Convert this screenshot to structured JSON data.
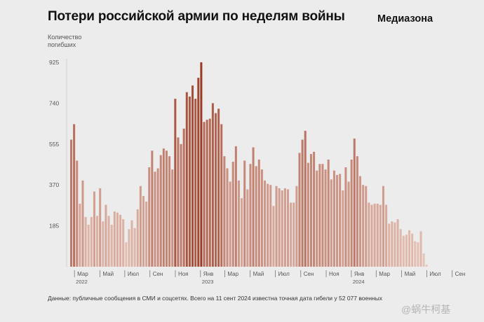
{
  "header": {
    "title": "Потери российской армии по неделям войны",
    "brand": "Медиазона"
  },
  "footnote": "Данные: публичные сообщения в СМИ и соцсетях. Всего на 11 сент 2024 известна точная дата гибели у 52 077 военных",
  "watermark": "@蜗牛柯基",
  "colors": {
    "low": "#e9c8bc",
    "high": "#9a3a24",
    "background": "#ececec",
    "axis_text": "#555555"
  },
  "chart_data": {
    "type": "bar",
    "title": "Потери российской армии по неделям войны",
    "ylabel": "Количество погибших",
    "xlabel": "",
    "ylim": [
      0,
      925
    ],
    "yticks": [
      185,
      370,
      555,
      740,
      925
    ],
    "grid": false,
    "x_unit": "week index (0 = first week of war, late Feb 2022)",
    "values": [
      575,
      645,
      480,
      285,
      390,
      225,
      190,
      225,
      340,
      230,
      355,
      205,
      280,
      230,
      190,
      250,
      245,
      235,
      215,
      110,
      170,
      210,
      175,
      260,
      365,
      320,
      295,
      450,
      525,
      430,
      445,
      505,
      535,
      525,
      500,
      440,
      760,
      585,
      555,
      625,
      790,
      770,
      820,
      760,
      855,
      925,
      655,
      665,
      670,
      740,
      695,
      715,
      645,
      500,
      445,
      385,
      475,
      545,
      390,
      310,
      480,
      350,
      465,
      540,
      455,
      485,
      440,
      390,
      375,
      370,
      275,
      365,
      355,
      345,
      355,
      350,
      290,
      290,
      365,
      515,
      575,
      615,
      470,
      510,
      520,
      435,
      465,
      465,
      440,
      485,
      395,
      435,
      415,
      420,
      345,
      450,
      385,
      485,
      580,
      500,
      410,
      370,
      365,
      290,
      280,
      285,
      285,
      280,
      365,
      280,
      195,
      205,
      200,
      215,
      170,
      140,
      145,
      165,
      150,
      115,
      110,
      160,
      60,
      10
    ],
    "x_ticks": [
      {
        "label": "Мар",
        "week": 1.5
      },
      {
        "label": "Май",
        "week": 10.3
      },
      {
        "label": "Июл",
        "week": 18.9
      },
      {
        "label": "Сен",
        "week": 27.6
      },
      {
        "label": "Ноя",
        "week": 36.4
      },
      {
        "label": "Янв",
        "week": 45.1
      },
      {
        "label": "Мар",
        "week": 53.5
      },
      {
        "label": "Май",
        "week": 62.3
      },
      {
        "label": "Июл",
        "week": 71.0
      },
      {
        "label": "Сен",
        "week": 79.8
      },
      {
        "label": "Ноя",
        "week": 88.6
      },
      {
        "label": "Янв",
        "week": 97.3
      },
      {
        "label": "Мар",
        "week": 105.9
      },
      {
        "label": "Май",
        "week": 114.7
      },
      {
        "label": "Июл",
        "week": 123.4
      },
      {
        "label": "Сен",
        "week": 132.2
      }
    ],
    "year_labels": [
      {
        "label": "2022",
        "week": 1.5
      },
      {
        "label": "2023",
        "week": 45.1
      },
      {
        "label": "2024",
        "week": 97.3
      }
    ]
  }
}
